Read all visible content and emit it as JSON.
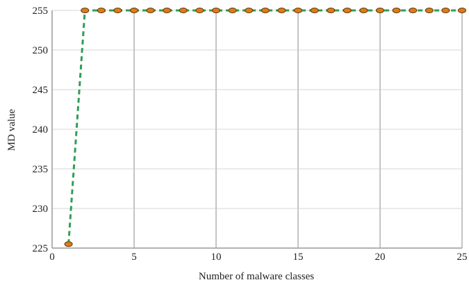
{
  "chart_data": {
    "type": "line",
    "title": "",
    "xlabel": "Number of malware classes",
    "ylabel": "MD value",
    "xlim": [
      0,
      25
    ],
    "ylim": [
      225,
      255
    ],
    "xticks": [
      0,
      5,
      10,
      15,
      20,
      25
    ],
    "yticks": [
      225,
      230,
      235,
      240,
      245,
      250,
      255
    ],
    "grid": "vertical and horizontal",
    "legend": "none",
    "series": [
      {
        "x": [
          1,
          2,
          3,
          4,
          5,
          6,
          7,
          8,
          9,
          10,
          11,
          12,
          13,
          14,
          15,
          16,
          17,
          18,
          19,
          20,
          21,
          22,
          23,
          24,
          25
        ],
        "values": [
          225.5,
          255,
          255,
          255,
          255,
          255,
          255,
          255,
          255,
          255,
          255,
          255,
          255,
          255,
          255,
          255,
          255,
          255,
          255,
          255,
          255,
          255,
          255,
          255,
          255
        ],
        "line_color": "#2e9e57",
        "marker_color": "#e07b16",
        "line_style": "dashed"
      }
    ]
  }
}
